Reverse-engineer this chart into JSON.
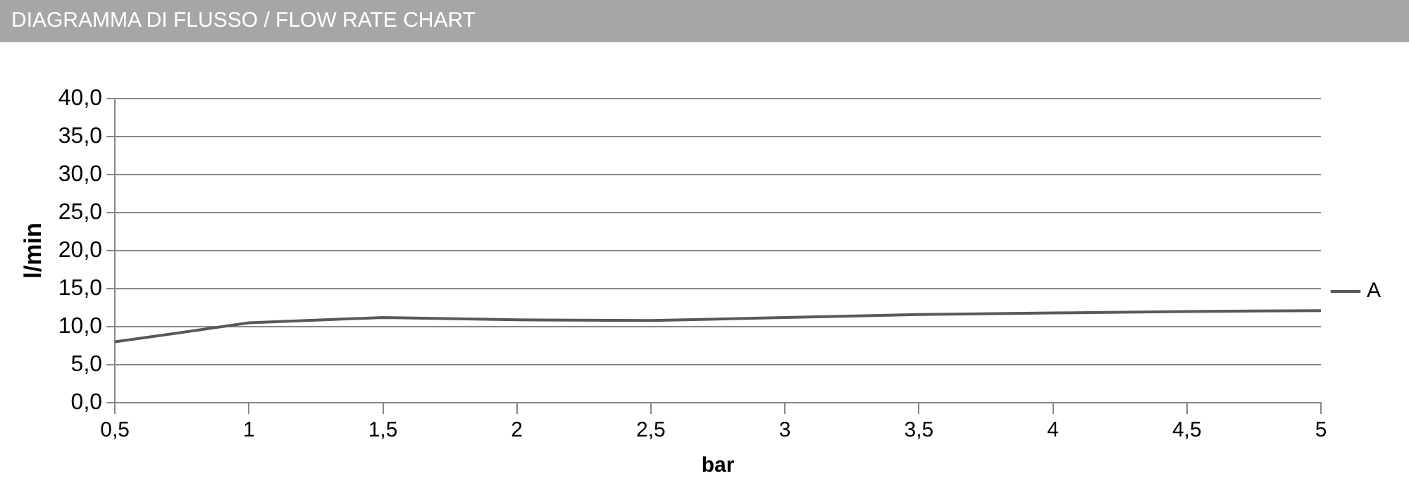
{
  "chart_data": {
    "type": "line",
    "title": "DIAGRAMMA DI FLUSSO / FLOW RATE CHART",
    "xlabel": "bar",
    "ylabel": "l/min",
    "categories": [
      "0,5",
      "1",
      "1,5",
      "2",
      "2,5",
      "3",
      "3,5",
      "4",
      "4,5",
      "5"
    ],
    "series": [
      {
        "name": "A",
        "color": "#595959",
        "values": [
          8.0,
          10.5,
          11.2,
          10.9,
          10.8,
          11.2,
          11.6,
          11.8,
          12.0,
          12.1
        ]
      }
    ],
    "ylim": [
      0,
      40
    ],
    "yticks": [
      {
        "value": 0,
        "label": "0,0"
      },
      {
        "value": 5,
        "label": "5,0"
      },
      {
        "value": 10,
        "label": "10,0"
      },
      {
        "value": 15,
        "label": "15,0"
      },
      {
        "value": 20,
        "label": "20,0"
      },
      {
        "value": 25,
        "label": "25,0"
      },
      {
        "value": 30,
        "label": "30,0"
      },
      {
        "value": 35,
        "label": "35,0"
      },
      {
        "value": 40,
        "label": "40,0"
      }
    ],
    "grid": "y",
    "legend": "right",
    "marker": "none",
    "line_style": "solid"
  }
}
